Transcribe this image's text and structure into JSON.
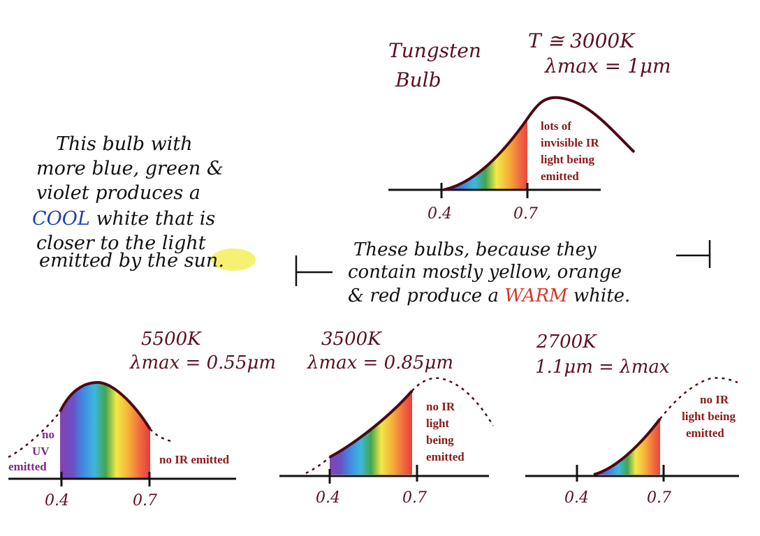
{
  "colors": {
    "ink_maroon": "#5a1020",
    "ink_black": "#111111",
    "label_red": "#8b1a1a",
    "label_purple": "#7a2a8a",
    "cool_blue": "#1f3fae",
    "warm_red": "#d23a2a",
    "sun_highlight": "#f4ee5c"
  },
  "tungsten": {
    "title_line1": "Tungsten",
    "title_line2": "Bulb",
    "temp": "T ≅ 3000K",
    "lambda": "λmax = 1μm",
    "note_lines": [
      "lots of",
      "invisible IR",
      "light being",
      "emitted"
    ],
    "tick_a": "0.4",
    "tick_b": "0.7"
  },
  "cool_note": {
    "line1": "This bulb with",
    "line2": "more blue, green &",
    "line3": "violet produces a",
    "line4_word": "COOL",
    "line4_rest": " white that is",
    "line5": "closer to the light",
    "line6_pre": "emitted by the ",
    "line6_sun": "sun."
  },
  "warm_note": {
    "line1": "These bulbs, because they",
    "line2": "contain mostly yellow, orange",
    "line3_pre": "& red produce a ",
    "line3_word": "WARM",
    "line3_post": " white."
  },
  "bulb_5500": {
    "temp": "5500K",
    "lambda": "λmax = 0.55μm",
    "uv_lines": [
      "no",
      "UV",
      "emitted"
    ],
    "ir_note": "no IR emitted",
    "tick_a": "0.4",
    "tick_b": "0.7"
  },
  "bulb_3500": {
    "temp": "3500K",
    "lambda": "λmax = 0.85μm",
    "ir_lines": [
      "no IR",
      "light",
      "being",
      "emitted"
    ],
    "tick_a": "0.4",
    "tick_b": "0.7"
  },
  "bulb_2700": {
    "temp": "2700K",
    "lambda": "1.1μm = λmax",
    "ir_lines": [
      "no IR",
      "light being",
      "emitted"
    ],
    "tick_a": "0.4",
    "tick_b": "0.7"
  }
}
